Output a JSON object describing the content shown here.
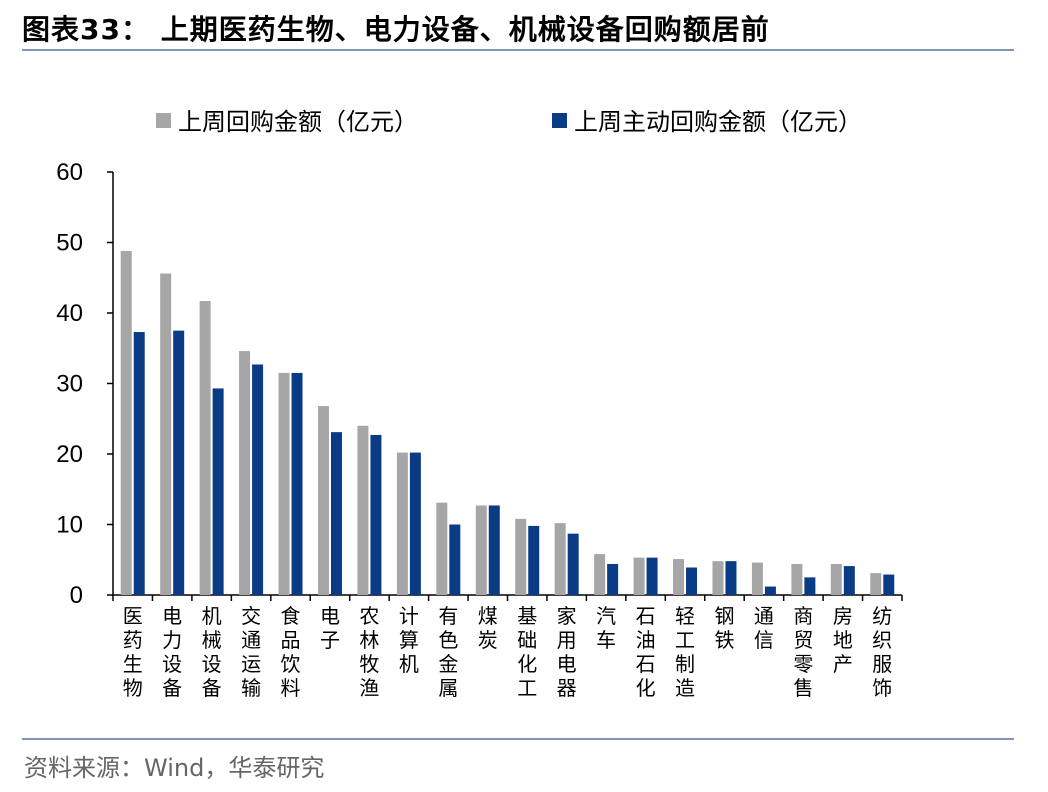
{
  "title": "图表33：  上期医药生物、电力设备、机械设备回购额居前",
  "source": "资料来源：Wind，华泰研究",
  "colors": {
    "series1": "#a6a6a6",
    "series2": "#0a3b85",
    "axis": "#000000",
    "rule": "#7f95b5"
  },
  "chart_data": {
    "type": "bar",
    "title": "",
    "xlabel": "",
    "ylabel": "",
    "ylim": [
      0,
      60
    ],
    "yticks": [
      0,
      10,
      20,
      30,
      40,
      50,
      60
    ],
    "legend_position": "top",
    "categories": [
      "医药生物",
      "电力设备",
      "机械设备",
      "交通运输",
      "食品饮料",
      "电子",
      "农林牧渔",
      "计算机",
      "有色金属",
      "煤炭",
      "基础化工",
      "家用电器",
      "汽车",
      "石油石化",
      "轻工制造",
      "钢铁",
      "通信",
      "商贸零售",
      "房地产",
      "纺织服饰"
    ],
    "series": [
      {
        "name": "上周回购金额（亿元）",
        "values": [
          48.8,
          45.6,
          41.7,
          34.6,
          31.5,
          26.8,
          24.0,
          20.2,
          13.1,
          12.7,
          10.8,
          10.2,
          5.8,
          5.3,
          5.1,
          4.8,
          4.6,
          4.4,
          4.4,
          3.1
        ]
      },
      {
        "name": "上周主动回购金额（亿元）",
        "values": [
          37.3,
          37.5,
          29.3,
          32.7,
          31.5,
          23.1,
          22.7,
          20.2,
          10.0,
          12.7,
          9.8,
          8.7,
          4.4,
          5.3,
          3.9,
          4.8,
          1.2,
          2.5,
          4.1,
          2.9
        ]
      }
    ]
  }
}
